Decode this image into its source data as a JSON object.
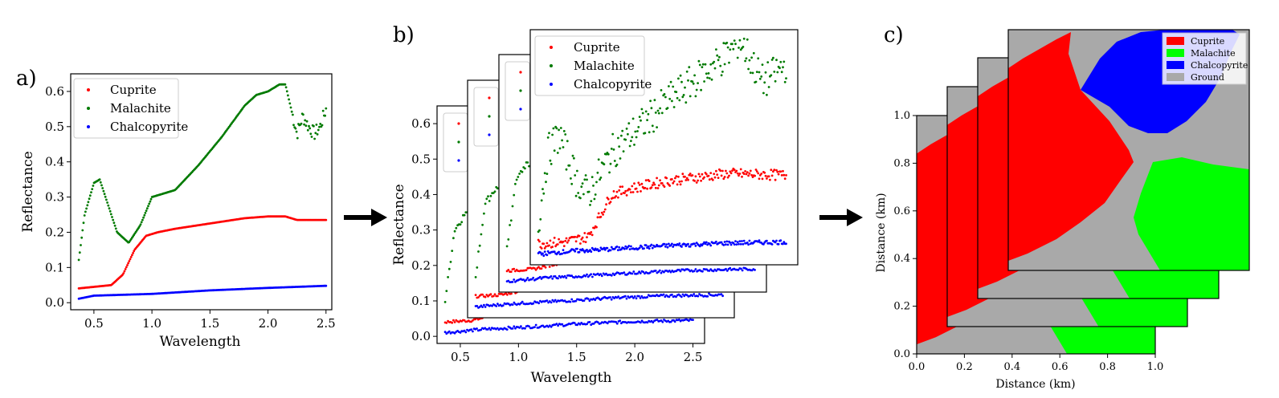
{
  "colors": {
    "cuprite": "#ff0000",
    "malachite": "#007a00",
    "chalcopyrite": "#0000ff",
    "malachite_map": "#00ff00",
    "ground": "#a9a9a9"
  },
  "panel_a": {
    "label": "a)",
    "xlabel": "Wavelength",
    "ylabel": "Reflectance",
    "xticks": [
      "0.5",
      "1.0",
      "1.5",
      "2.0",
      "2.5"
    ],
    "yticks": [
      "0.0",
      "0.1",
      "0.2",
      "0.3",
      "0.4",
      "0.5",
      "0.6"
    ],
    "legend": [
      "Cuprite",
      "Malachite",
      "Chalcopyrite"
    ]
  },
  "panel_b": {
    "label": "b)",
    "xlabel": "Wavelength",
    "ylabel": "Reflectance",
    "xticks": [
      "0.5",
      "1.0",
      "1.5",
      "2.0",
      "2.5"
    ],
    "yticks": [
      "0.0",
      "0.1",
      "0.2",
      "0.3",
      "0.4",
      "0.5",
      "0.6"
    ],
    "legend": [
      "Cuprite",
      "Malachite",
      "Chalcopyrite"
    ]
  },
  "panel_c": {
    "label": "c)",
    "xlabel": "Distance (km)",
    "ylabel": "Distance (km)",
    "xticks": [
      "0.0",
      "0.2",
      "0.4",
      "0.6",
      "0.8",
      "1.0"
    ],
    "yticks": [
      "0.0",
      "0.2",
      "0.4",
      "0.6",
      "0.8",
      "1.0"
    ],
    "legend": [
      "Cuprite",
      "Malachite",
      "Chalcopyrite",
      "Ground"
    ]
  },
  "chart_data": [
    {
      "type": "scatter",
      "xlabel": "Wavelength",
      "ylabel": "Reflectance",
      "xlim": [
        0.3,
        2.55
      ],
      "ylim": [
        -0.02,
        0.65
      ],
      "legend_position": "top-left",
      "series": [
        {
          "name": "Cuprite",
          "x": [
            0.35,
            0.5,
            0.65,
            0.75,
            0.85,
            0.95,
            1.05,
            1.2,
            1.4,
            1.6,
            1.8,
            2.0,
            2.15,
            2.25,
            2.35,
            2.45,
            2.5
          ],
          "y": [
            0.04,
            0.045,
            0.05,
            0.08,
            0.15,
            0.19,
            0.2,
            0.21,
            0.22,
            0.23,
            0.24,
            0.245,
            0.245,
            0.235,
            0.235,
            0.235,
            0.235
          ]
        },
        {
          "name": "Malachite",
          "x": [
            0.35,
            0.42,
            0.5,
            0.55,
            0.6,
            0.7,
            0.8,
            0.9,
            1.0,
            1.1,
            1.2,
            1.4,
            1.6,
            1.8,
            1.9,
            2.0,
            2.1,
            2.15,
            2.2,
            2.25,
            2.3,
            2.35,
            2.4,
            2.45,
            2.5
          ],
          "y": [
            0.07,
            0.25,
            0.34,
            0.35,
            0.3,
            0.2,
            0.17,
            0.22,
            0.3,
            0.31,
            0.32,
            0.39,
            0.47,
            0.56,
            0.59,
            0.6,
            0.62,
            0.62,
            0.55,
            0.48,
            0.53,
            0.5,
            0.48,
            0.5,
            0.55
          ]
        },
        {
          "name": "Chalcopyrite",
          "x": [
            0.35,
            0.5,
            0.7,
            1.0,
            1.5,
            2.0,
            2.5
          ],
          "y": [
            0.01,
            0.02,
            0.022,
            0.025,
            0.035,
            0.042,
            0.048
          ]
        }
      ]
    },
    {
      "type": "scatter",
      "xlabel": "Wavelength",
      "ylabel": "Reflectance",
      "xlim": [
        0.3,
        2.6
      ],
      "ylim": [
        -0.02,
        0.65
      ],
      "stacked_layers": 4,
      "series": [
        {
          "name": "Cuprite",
          "x": [
            0.35,
            0.6,
            0.8,
            1.0,
            1.2,
            1.5,
            2.0,
            2.5
          ],
          "y": [
            0.04,
            0.045,
            0.06,
            0.18,
            0.2,
            0.22,
            0.24,
            0.235
          ]
        },
        {
          "name": "Malachite",
          "x": [
            0.35,
            0.45,
            0.55,
            0.7,
            0.8,
            1.0,
            1.5,
            2.0,
            2.1,
            2.3,
            2.5
          ],
          "y": [
            0.05,
            0.3,
            0.35,
            0.22,
            0.18,
            0.3,
            0.45,
            0.58,
            0.62,
            0.5,
            0.55
          ]
        },
        {
          "name": "Chalcopyrite",
          "x": [
            0.35,
            0.7,
            1.0,
            1.5,
            2.0,
            2.5
          ],
          "y": [
            0.01,
            0.02,
            0.025,
            0.035,
            0.042,
            0.045
          ]
        }
      ]
    },
    {
      "type": "heatmap",
      "xlabel": "Distance (km)",
      "ylabel": "Distance (km)",
      "xlim": [
        0,
        1
      ],
      "ylim": [
        0,
        1
      ],
      "stacked_layers": 4,
      "classes": [
        "Cuprite",
        "Malachite",
        "Chalcopyrite",
        "Ground"
      ],
      "legend_position": "top-right"
    }
  ]
}
